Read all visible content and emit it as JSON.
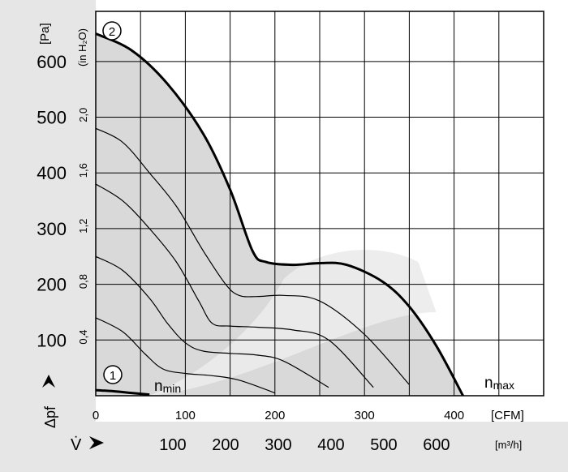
{
  "chart_data": {
    "type": "line",
    "y_unit": "[Pa]",
    "y2_unit": "(in H₂O)",
    "y_symbol": "Δpf",
    "x_unit_cfm": "[CFM]",
    "x_unit_m3h": "[m³/h]",
    "x_symbol": "V̇",
    "x_ticks_cfm": [
      "0",
      "100",
      "200",
      "300",
      "400"
    ],
    "x_ticks_m3h": [
      "100",
      "200",
      "300",
      "400",
      "500",
      "600"
    ],
    "y_ticks_pa": [
      "100",
      "200",
      "300",
      "400",
      "500",
      "600"
    ],
    "y_ticks_inh2o": [
      "0,4",
      "0,8",
      "1,2",
      "1,6",
      "2,0"
    ],
    "xlim": [
      0,
      500
    ],
    "ylim": [
      0,
      690
    ],
    "grid": true,
    "curve_labels": {
      "max_speed": "2",
      "min_speed": "1"
    },
    "annotations": {
      "n_min": "nmin",
      "n_max": "nmax"
    },
    "series": [
      {
        "name": "2",
        "emphasis": "bold",
        "x": [
          0,
          40,
          80,
          120,
          150,
          175,
          190,
          220,
          250,
          280,
          320,
          350,
          380,
          410
        ],
        "y": [
          650,
          620,
          560,
          470,
          370,
          260,
          240,
          235,
          238,
          235,
          205,
          160,
          90,
          0
        ]
      },
      {
        "emphasis": "thin",
        "x": [
          0,
          30,
          60,
          90,
          120,
          145,
          160,
          180,
          210,
          250,
          300,
          350
        ],
        "y": [
          480,
          455,
          400,
          340,
          260,
          200,
          180,
          178,
          180,
          170,
          110,
          20
        ]
      },
      {
        "emphasis": "thin",
        "x": [
          0,
          30,
          60,
          90,
          115,
          130,
          150,
          180,
          220,
          260,
          310
        ],
        "y": [
          380,
          350,
          300,
          240,
          170,
          130,
          125,
          123,
          118,
          100,
          15
        ]
      },
      {
        "emphasis": "thin",
        "x": [
          0,
          30,
          60,
          80,
          100,
          120,
          150,
          180,
          210,
          260
        ],
        "y": [
          250,
          225,
          175,
          130,
          95,
          80,
          76,
          73,
          62,
          15
        ]
      },
      {
        "emphasis": "thin",
        "x": [
          0,
          30,
          55,
          75,
          100,
          130,
          160,
          200
        ],
        "y": [
          140,
          115,
          75,
          48,
          40,
          36,
          28,
          5
        ]
      },
      {
        "name": "1",
        "emphasis": "bold",
        "x": [
          0,
          20,
          40,
          60
        ],
        "y": [
          10,
          8,
          5,
          2
        ]
      }
    ]
  }
}
